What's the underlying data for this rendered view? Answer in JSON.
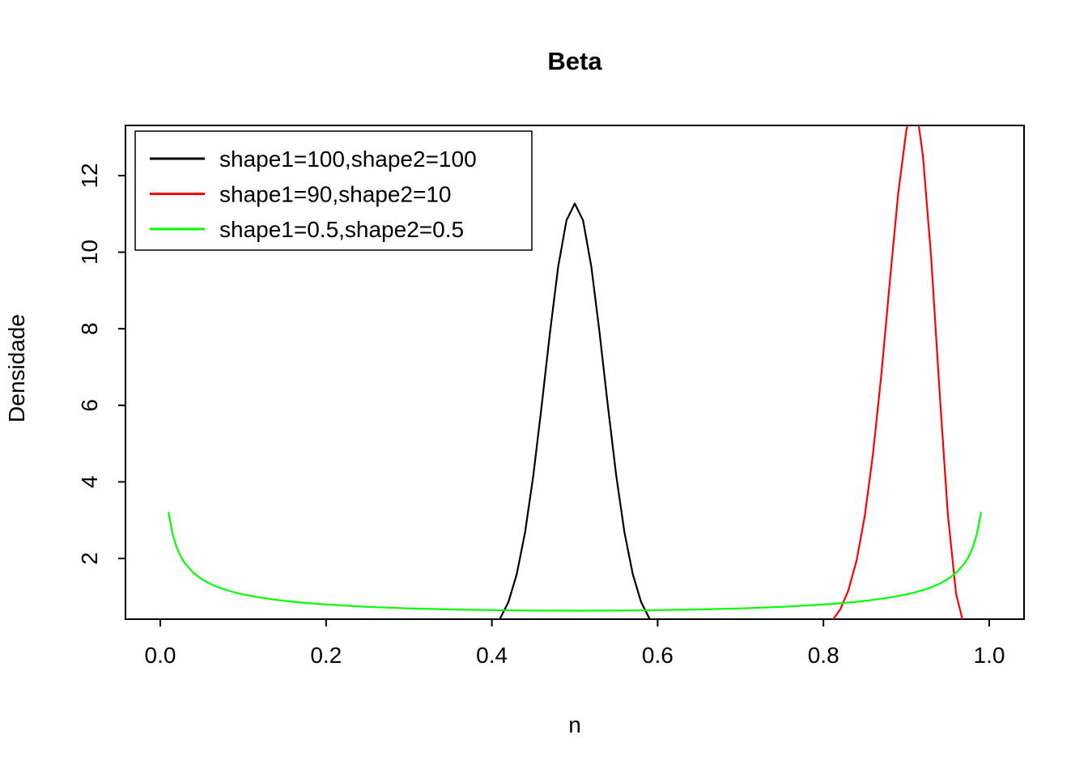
{
  "chart_data": {
    "type": "line",
    "title": "Beta",
    "xlabel": "n",
    "ylabel": "Densidade",
    "xlim": [
      -0.042,
      1.042
    ],
    "ylim": [
      0.414,
      13.31
    ],
    "x_ticks": [
      0,
      0.2,
      0.4,
      0.6,
      0.8,
      1.0
    ],
    "x_tick_labels": [
      "0.0",
      "0.2",
      "0.4",
      "0.6",
      "0.8",
      "1.0"
    ],
    "y_ticks": [
      2,
      4,
      6,
      8,
      10,
      12
    ],
    "y_tick_labels": [
      "2",
      "4",
      "6",
      "8",
      "10",
      "12"
    ],
    "grid": false,
    "background": "#ffffff",
    "box_color": "#000000",
    "legend": {
      "position": "top-left",
      "entries": [
        {
          "label": "shape1=100,shape2=100",
          "color": "#000000"
        },
        {
          "label": "shape1=90,shape2=10",
          "color": "#FF0000"
        },
        {
          "label": "shape1=0.5,shape2=0.5",
          "color": "#00FF00"
        }
      ]
    },
    "series": [
      {
        "name": "shape1=100,shape2=100",
        "color": "#000000",
        "points": [
          [
            0.36,
            0.003
          ],
          [
            0.37,
            0.011
          ],
          [
            0.38,
            0.032
          ],
          [
            0.39,
            0.083
          ],
          [
            0.4,
            0.198
          ],
          [
            0.41,
            0.432
          ],
          [
            0.42,
            0.865
          ],
          [
            0.43,
            1.588
          ],
          [
            0.44,
            2.681
          ],
          [
            0.45,
            4.167
          ],
          [
            0.46,
            5.968
          ],
          [
            0.47,
            7.886
          ],
          [
            0.48,
            9.618
          ],
          [
            0.49,
            10.832
          ],
          [
            0.5,
            11.27
          ],
          [
            0.51,
            10.832
          ],
          [
            0.52,
            9.618
          ],
          [
            0.53,
            7.886
          ],
          [
            0.54,
            5.968
          ],
          [
            0.55,
            4.167
          ],
          [
            0.56,
            2.681
          ],
          [
            0.57,
            1.588
          ],
          [
            0.58,
            0.865
          ],
          [
            0.59,
            0.432
          ],
          [
            0.6,
            0.198
          ],
          [
            0.61,
            0.083
          ],
          [
            0.62,
            0.032
          ],
          [
            0.63,
            0.011
          ],
          [
            0.64,
            0.003
          ]
        ]
      },
      {
        "name": "shape1=90,shape2=10",
        "color": "#FF0000",
        "points": [
          [
            0.74,
            0.002
          ],
          [
            0.76,
            0.01
          ],
          [
            0.78,
            0.047
          ],
          [
            0.8,
            0.189
          ],
          [
            0.81,
            0.36
          ],
          [
            0.82,
            0.66
          ],
          [
            0.83,
            1.16
          ],
          [
            0.84,
            1.952
          ],
          [
            0.85,
            3.131
          ],
          [
            0.86,
            4.766
          ],
          [
            0.87,
            6.843
          ],
          [
            0.88,
            9.209
          ],
          [
            0.89,
            11.505
          ],
          [
            0.9,
            13.188
          ],
          [
            0.905,
            13.608
          ],
          [
            0.91,
            13.66
          ],
          [
            0.915,
            13.301
          ],
          [
            0.92,
            12.518
          ],
          [
            0.93,
            9.85
          ],
          [
            0.94,
            6.373
          ],
          [
            0.95,
            3.167
          ],
          [
            0.96,
            1.08
          ],
          [
            0.97,
            0.204
          ],
          [
            0.98,
            0.013
          ],
          [
            0.99,
            0.0001
          ]
        ]
      },
      {
        "name": "shape1=0.5,shape2=0.5",
        "color": "#00FF00",
        "points": [
          [
            0.01,
            3.199
          ],
          [
            0.015,
            2.618
          ],
          [
            0.02,
            2.274
          ],
          [
            0.025,
            2.039
          ],
          [
            0.03,
            1.866
          ],
          [
            0.04,
            1.624
          ],
          [
            0.05,
            1.46
          ],
          [
            0.06,
            1.34
          ],
          [
            0.07,
            1.248
          ],
          [
            0.08,
            1.173
          ],
          [
            0.09,
            1.112
          ],
          [
            0.1,
            1.061
          ],
          [
            0.12,
            0.98
          ],
          [
            0.14,
            0.917
          ],
          [
            0.16,
            0.868
          ],
          [
            0.18,
            0.828
          ],
          [
            0.2,
            0.796
          ],
          [
            0.25,
            0.735
          ],
          [
            0.3,
            0.695
          ],
          [
            0.35,
            0.667
          ],
          [
            0.4,
            0.65
          ],
          [
            0.45,
            0.64
          ],
          [
            0.5,
            0.637
          ],
          [
            0.55,
            0.64
          ],
          [
            0.6,
            0.65
          ],
          [
            0.65,
            0.667
          ],
          [
            0.7,
            0.695
          ],
          [
            0.75,
            0.735
          ],
          [
            0.8,
            0.796
          ],
          [
            0.82,
            0.828
          ],
          [
            0.84,
            0.868
          ],
          [
            0.86,
            0.917
          ],
          [
            0.88,
            0.98
          ],
          [
            0.9,
            1.061
          ],
          [
            0.91,
            1.112
          ],
          [
            0.92,
            1.173
          ],
          [
            0.93,
            1.248
          ],
          [
            0.94,
            1.34
          ],
          [
            0.95,
            1.46
          ],
          [
            0.96,
            1.624
          ],
          [
            0.97,
            1.866
          ],
          [
            0.975,
            2.039
          ],
          [
            0.98,
            2.274
          ],
          [
            0.985,
            2.618
          ],
          [
            0.99,
            3.199
          ]
        ]
      }
    ]
  }
}
